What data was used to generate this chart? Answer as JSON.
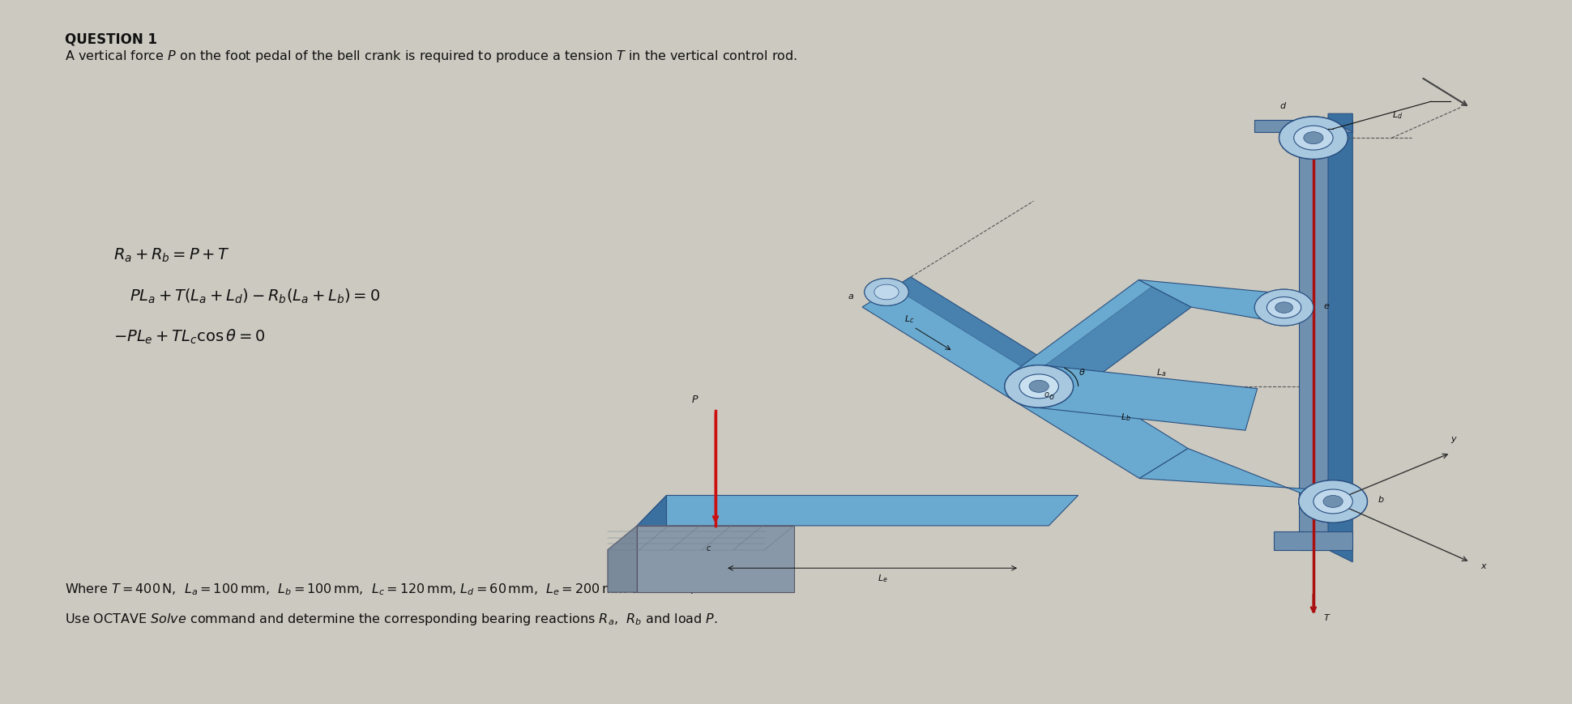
{
  "bg_color": "#cbc9c0",
  "title_text": "QUESTION 1",
  "subtitle_text": "A vertical force $P$ on the foot pedal of the bell crank is required to produce a tension $T$ in the vertical control rod.",
  "eq1": "$R_a + R_b = P+T$",
  "eq2": "$PL_a +T\\left(L_a +L_d\\right)-R_b\\left(L_a +L_b\\right)=0$",
  "eq3": "$-PL_e +TL_c \\cos\\theta =0$",
  "where_text": "Where $T=400\\,\\mathrm{N}$,  $L_a =100\\,\\mathrm{mm}$,  $L_b =100\\,\\mathrm{mm}$,  $L_c =120\\,\\mathrm{mm}$, $L_d =60\\,\\mathrm{mm}$,  $L_e =200\\,\\mathrm{mm}$ and $\\theta=\\pi/6$",
  "use_text": "Use OCTAVE Solve command and determine the corresponding bearing reactions $R_a$,  $R_b$ and load $P$.",
  "text_color": "#111111",
  "blue_light": "#a8c8e0",
  "blue_mid": "#5590c0",
  "blue_dark": "#2a5080",
  "blue_body": "#6aaad0",
  "blue_deep": "#3a70a0",
  "blue_gray": "#7090b0",
  "gray_pedal": "#8898aa",
  "red_force": "#cc1010"
}
